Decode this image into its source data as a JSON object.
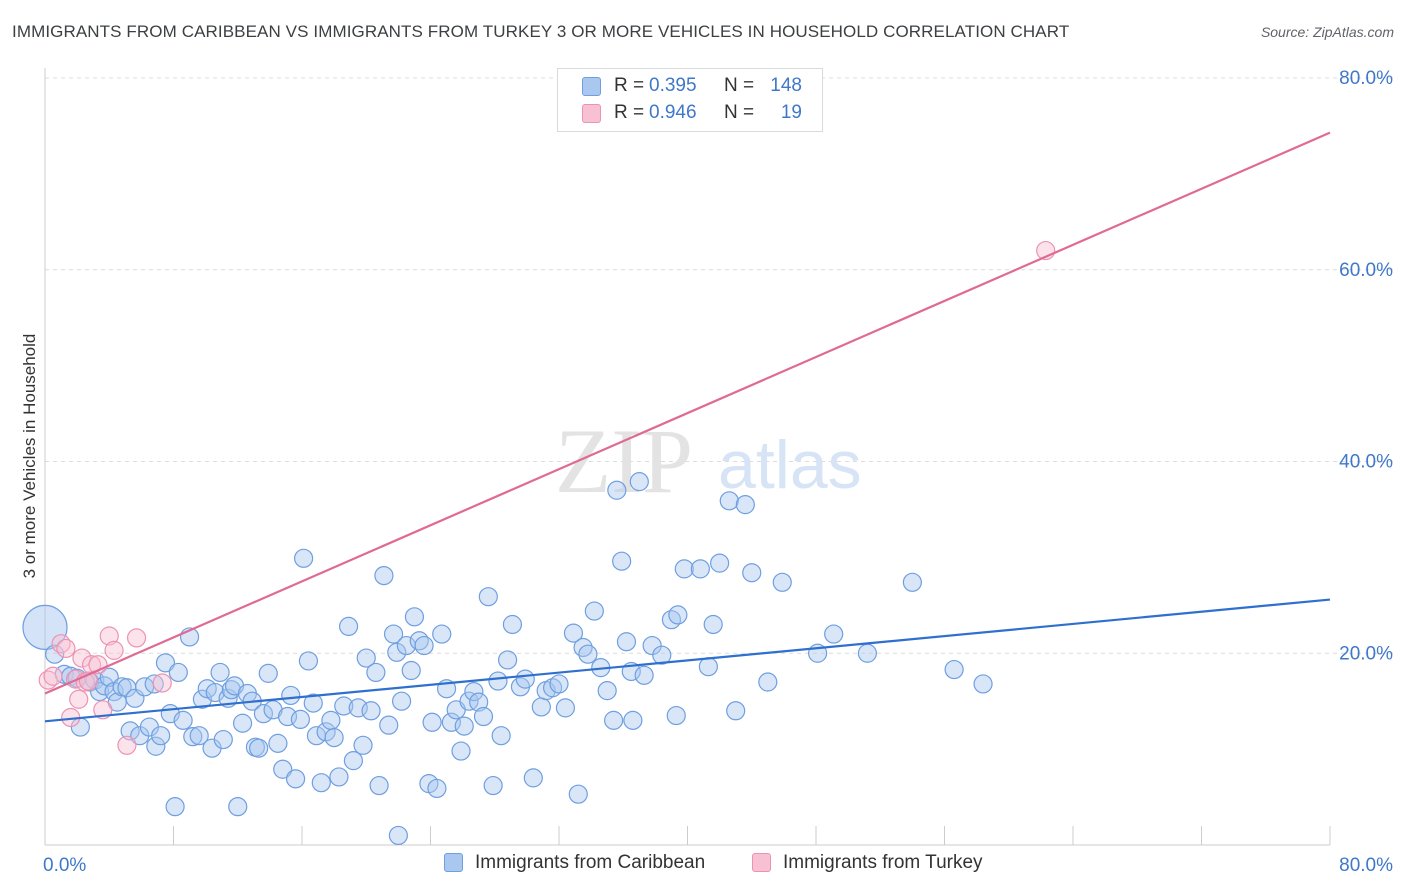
{
  "title": "IMMIGRANTS FROM CARIBBEAN VS IMMIGRANTS FROM TURKEY 3 OR MORE VEHICLES IN HOUSEHOLD CORRELATION CHART",
  "source": "Source: ZipAtlas.com",
  "watermark": {
    "zip": "ZIP",
    "atlas": "atlas"
  },
  "colors": {
    "caribbean_fill": "#a9c7ef",
    "caribbean_stroke": "#6f9fe0",
    "caribbean_line": "#2f6fce",
    "turkey_fill": "#f8c0d3",
    "turkey_stroke": "#ec93b3",
    "turkey_line": "#e06a93",
    "axis_value": "#3f78c9",
    "grid": "#dcdcdc"
  },
  "legend": {
    "rows": [
      {
        "r_label": "R =",
        "r_value": "0.395",
        "n_label": "N =",
        "n_value": "148"
      },
      {
        "r_label": "R =",
        "r_value": "0.946",
        "n_label": "N =",
        "n_value": "19"
      }
    ]
  },
  "chart_data": {
    "type": "scatter",
    "title": "IMMIGRANTS FROM CARIBBEAN VS IMMIGRANTS FROM TURKEY 3 OR MORE VEHICLES IN HOUSEHOLD CORRELATION CHART",
    "xlabel": "",
    "ylabel": "3 or more Vehicles in Household",
    "xlim": [
      0,
      80
    ],
    "ylim": [
      0,
      80
    ],
    "x_tick_labels": [
      "0.0%",
      "80.0%"
    ],
    "y_tick_labels": [
      "20.0%",
      "40.0%",
      "60.0%",
      "80.0%"
    ],
    "y_ticks": [
      20,
      40,
      60,
      80
    ],
    "grid": true,
    "legend_position": "top-center and bottom",
    "series": [
      {
        "name": "Immigrants from Caribbean",
        "r": 0.395,
        "n": 148,
        "trend": {
          "x": [
            0,
            80
          ],
          "y": [
            12.9,
            25.6
          ]
        },
        "points": [
          [
            0.0,
            22.7
          ],
          [
            0.6,
            19.9
          ],
          [
            1.2,
            17.8
          ],
          [
            1.6,
            17.6
          ],
          [
            2.0,
            17.4
          ],
          [
            2.2,
            12.3
          ],
          [
            2.8,
            17.0
          ],
          [
            3.1,
            17.2
          ],
          [
            3.4,
            16.0
          ],
          [
            3.7,
            16.6
          ],
          [
            4.0,
            17.5
          ],
          [
            4.3,
            16.0
          ],
          [
            4.5,
            14.9
          ],
          [
            4.8,
            16.5
          ],
          [
            5.1,
            16.4
          ],
          [
            5.3,
            11.9
          ],
          [
            5.6,
            15.3
          ],
          [
            5.9,
            11.4
          ],
          [
            6.2,
            16.5
          ],
          [
            6.5,
            12.3
          ],
          [
            6.8,
            16.8
          ],
          [
            6.9,
            10.3
          ],
          [
            7.2,
            11.4
          ],
          [
            7.5,
            19.0
          ],
          [
            7.8,
            13.7
          ],
          [
            8.1,
            4.0
          ],
          [
            8.3,
            18.0
          ],
          [
            8.6,
            13.0
          ],
          [
            9.0,
            21.7
          ],
          [
            9.2,
            11.3
          ],
          [
            9.6,
            11.4
          ],
          [
            9.8,
            15.2
          ],
          [
            10.1,
            16.3
          ],
          [
            10.4,
            10.1
          ],
          [
            10.6,
            15.9
          ],
          [
            10.9,
            18.0
          ],
          [
            11.1,
            11.0
          ],
          [
            11.4,
            15.3
          ],
          [
            11.6,
            16.2
          ],
          [
            11.8,
            16.6
          ],
          [
            12.0,
            4.0
          ],
          [
            12.3,
            12.7
          ],
          [
            12.6,
            15.8
          ],
          [
            12.9,
            15.0
          ],
          [
            13.1,
            10.2
          ],
          [
            13.3,
            10.1
          ],
          [
            13.6,
            13.7
          ],
          [
            13.9,
            17.9
          ],
          [
            14.2,
            14.1
          ],
          [
            14.5,
            10.6
          ],
          [
            14.8,
            7.9
          ],
          [
            15.1,
            13.4
          ],
          [
            15.3,
            15.6
          ],
          [
            15.6,
            6.9
          ],
          [
            15.9,
            13.1
          ],
          [
            16.1,
            29.9
          ],
          [
            16.4,
            19.2
          ],
          [
            16.7,
            14.8
          ],
          [
            16.9,
            11.4
          ],
          [
            17.2,
            6.5
          ],
          [
            17.5,
            11.8
          ],
          [
            17.8,
            13.0
          ],
          [
            18.0,
            11.2
          ],
          [
            18.3,
            7.1
          ],
          [
            18.6,
            14.5
          ],
          [
            18.9,
            22.8
          ],
          [
            19.2,
            8.8
          ],
          [
            19.5,
            14.3
          ],
          [
            19.8,
            10.4
          ],
          [
            20.0,
            19.5
          ],
          [
            20.3,
            14.0
          ],
          [
            20.6,
            18.0
          ],
          [
            20.8,
            6.2
          ],
          [
            21.1,
            28.1
          ],
          [
            21.4,
            12.5
          ],
          [
            21.7,
            22.0
          ],
          [
            21.9,
            20.1
          ],
          [
            22.2,
            15.0
          ],
          [
            22.5,
            20.8
          ],
          [
            22.8,
            18.2
          ],
          [
            23.0,
            23.8
          ],
          [
            23.3,
            21.3
          ],
          [
            23.6,
            20.8
          ],
          [
            23.9,
            6.4
          ],
          [
            24.1,
            12.8
          ],
          [
            24.4,
            5.9
          ],
          [
            24.7,
            22.0
          ],
          [
            25.0,
            16.3
          ],
          [
            25.3,
            12.8
          ],
          [
            25.6,
            14.1
          ],
          [
            25.9,
            9.8
          ],
          [
            26.1,
            12.4
          ],
          [
            26.4,
            15.0
          ],
          [
            26.7,
            16.0
          ],
          [
            27.0,
            14.9
          ],
          [
            27.3,
            13.4
          ],
          [
            27.6,
            25.9
          ],
          [
            27.9,
            6.2
          ],
          [
            28.2,
            17.1
          ],
          [
            28.4,
            11.4
          ],
          [
            28.8,
            19.3
          ],
          [
            29.1,
            23.0
          ],
          [
            29.6,
            16.5
          ],
          [
            29.9,
            17.3
          ],
          [
            30.4,
            7.0
          ],
          [
            30.9,
            14.4
          ],
          [
            31.2,
            16.1
          ],
          [
            31.6,
            16.4
          ],
          [
            32.0,
            16.8
          ],
          [
            32.4,
            14.3
          ],
          [
            32.9,
            22.1
          ],
          [
            33.2,
            5.3
          ],
          [
            33.5,
            20.6
          ],
          [
            33.8,
            19.9
          ],
          [
            34.2,
            24.4
          ],
          [
            34.6,
            18.5
          ],
          [
            35.0,
            16.1
          ],
          [
            35.4,
            13.0
          ],
          [
            35.6,
            37.0
          ],
          [
            35.9,
            29.6
          ],
          [
            36.2,
            21.2
          ],
          [
            36.5,
            18.1
          ],
          [
            37.0,
            37.9
          ],
          [
            37.3,
            17.7
          ],
          [
            37.8,
            20.8
          ],
          [
            38.4,
            19.8
          ],
          [
            39.0,
            23.5
          ],
          [
            39.3,
            13.5
          ],
          [
            39.4,
            24.0
          ],
          [
            39.8,
            28.8
          ],
          [
            40.8,
            28.8
          ],
          [
            41.3,
            18.6
          ],
          [
            41.6,
            23.0
          ],
          [
            42.0,
            29.4
          ],
          [
            42.6,
            35.9
          ],
          [
            43.0,
            14.0
          ],
          [
            43.6,
            35.5
          ],
          [
            44.0,
            28.4
          ],
          [
            45.0,
            17.0
          ],
          [
            45.9,
            27.4
          ],
          [
            48.1,
            20.0
          ],
          [
            49.1,
            22.0
          ],
          [
            51.2,
            20.0
          ],
          [
            54.0,
            27.4
          ],
          [
            56.6,
            18.3
          ],
          [
            58.4,
            16.8
          ],
          [
            22.0,
            1.0
          ],
          [
            36.6,
            13.0
          ]
        ]
      },
      {
        "name": "Immigrants from Turkey",
        "r": 0.946,
        "n": 19,
        "trend": {
          "x": [
            0,
            80
          ],
          "y": [
            15.8,
            74.3
          ]
        },
        "points": [
          [
            0.2,
            17.2
          ],
          [
            0.5,
            17.6
          ],
          [
            1.0,
            21.0
          ],
          [
            1.3,
            20.5
          ],
          [
            1.6,
            13.3
          ],
          [
            1.9,
            17.3
          ],
          [
            2.3,
            19.5
          ],
          [
            2.5,
            17.0
          ],
          [
            2.9,
            18.8
          ],
          [
            3.3,
            18.8
          ],
          [
            2.1,
            15.2
          ],
          [
            3.6,
            14.1
          ],
          [
            4.0,
            21.8
          ],
          [
            4.3,
            20.3
          ],
          [
            5.1,
            10.4
          ],
          [
            5.7,
            21.6
          ],
          [
            7.3,
            16.9
          ],
          [
            2.7,
            17.1
          ],
          [
            62.3,
            62.0
          ]
        ]
      }
    ]
  }
}
